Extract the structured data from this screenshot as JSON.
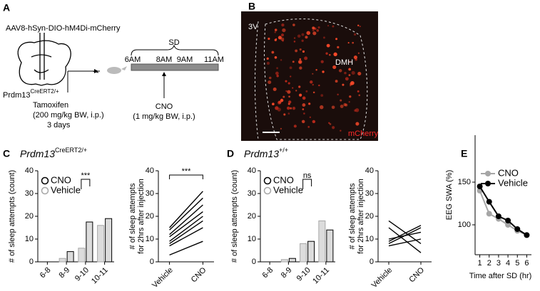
{
  "panel_a": {
    "label": "A",
    "vector": "AAV8-hSyn-DIO-hM4Di-mCherry",
    "mouse": "Prdm13",
    "mouse_superscript": "CreERT2/+",
    "tamoxifen": "Tamoxifen",
    "tamoxifen_dose": "(200 mg/kg BW, i.p.)",
    "tamoxifen_duration": "3 days",
    "sd": "SD",
    "times": [
      "6AM",
      "8AM",
      "9AM",
      "11AM"
    ],
    "cno": "CNO",
    "cno_dose": "(1 mg/kg BW, i.p.)"
  },
  "panel_b": {
    "label": "B",
    "regions": [
      "3V",
      "DMH"
    ],
    "stain": "mCherry"
  },
  "panel_c": {
    "label": "C",
    "genotype": "Prdm13",
    "superscript": "CreERT2/+"
  },
  "panel_d": {
    "label": "D",
    "genotype": "Prdm13",
    "superscript": "+/+"
  },
  "panel_e": {
    "label": "E"
  },
  "chart_data": [
    {
      "type": "bar",
      "categories": [
        "6-8",
        "8-9",
        "9-10",
        "10-11"
      ],
      "series": [
        {
          "name": "CNO",
          "color": "#000000",
          "values": [
            0,
            4.5,
            17.5,
            19
          ]
        },
        {
          "name": "Vehicle",
          "color": "#a6a6a6",
          "values": [
            0,
            1.5,
            6,
            16
          ]
        }
      ],
      "ylabel": "# of sleep attempts (count)",
      "ylim": [
        0,
        40
      ],
      "yticks": [
        0,
        10,
        20,
        30,
        40
      ],
      "annotation": "***"
    },
    {
      "type": "line",
      "categories": [
        "Vehicle",
        "CNO"
      ],
      "color": "#000000",
      "series": [
        {
          "values": [
            3,
            9
          ]
        },
        {
          "values": [
            7,
            15
          ]
        },
        {
          "values": [
            8,
            18
          ]
        },
        {
          "values": [
            9,
            20
          ]
        },
        {
          "values": [
            11,
            22
          ]
        },
        {
          "values": [
            12,
            25
          ]
        },
        {
          "values": [
            14,
            28
          ]
        },
        {
          "values": [
            15,
            31
          ]
        }
      ],
      "ylabel": [
        "# of sleep attempts",
        "for 2hrs after injection"
      ],
      "ylim": [
        0,
        40
      ],
      "yticks": [
        0,
        10,
        20,
        30,
        40
      ],
      "annotation": "***"
    },
    {
      "type": "bar",
      "categories": [
        "6-8",
        "8-9",
        "9-10",
        "10-11"
      ],
      "series": [
        {
          "name": "CNO",
          "color": "#000000",
          "values": [
            0,
            1.5,
            9,
            14
          ]
        },
        {
          "name": "Vehicle",
          "color": "#a6a6a6",
          "values": [
            0,
            1,
            8,
            18
          ]
        }
      ],
      "ylabel": "# of sleep attempts (count)",
      "ylim": [
        0,
        40
      ],
      "yticks": [
        0,
        10,
        20,
        30,
        40
      ],
      "annotation": "ns"
    },
    {
      "type": "line",
      "categories": [
        "Vehicle",
        "CNO"
      ],
      "color": "#000000",
      "series": [
        {
          "values": [
            18,
            8
          ]
        },
        {
          "values": [
            15,
            4
          ]
        },
        {
          "values": [
            8,
            15
          ]
        },
        {
          "values": [
            9,
            16
          ]
        },
        {
          "values": [
            10,
            13
          ]
        },
        {
          "values": [
            7,
            10
          ]
        }
      ],
      "ylabel": [
        "# of sleep attempts",
        "for 2hrs after injection"
      ],
      "ylim": [
        0,
        40
      ],
      "yticks": [
        0,
        10,
        20,
        30,
        40
      ]
    },
    {
      "type": "line",
      "x": [
        1,
        2,
        3,
        4,
        5,
        6
      ],
      "series": [
        {
          "name": "CNO",
          "color": "#a6a6a6",
          "values": [
            140,
            113,
            107,
            100,
            93,
            88
          ]
        },
        {
          "name": "Vehicle",
          "color": "#000000",
          "values": [
            145,
            127,
            110,
            105,
            95,
            88
          ]
        }
      ],
      "xlabel": "Time after SD (hr)",
      "ylabel": "EEG SWA (%)",
      "xlim": [
        0.5,
        6.5
      ],
      "xticks": [
        1,
        2,
        3,
        4,
        5,
        6
      ],
      "ylim": [
        65,
        205
      ],
      "yticks": [
        100,
        150
      ]
    }
  ]
}
